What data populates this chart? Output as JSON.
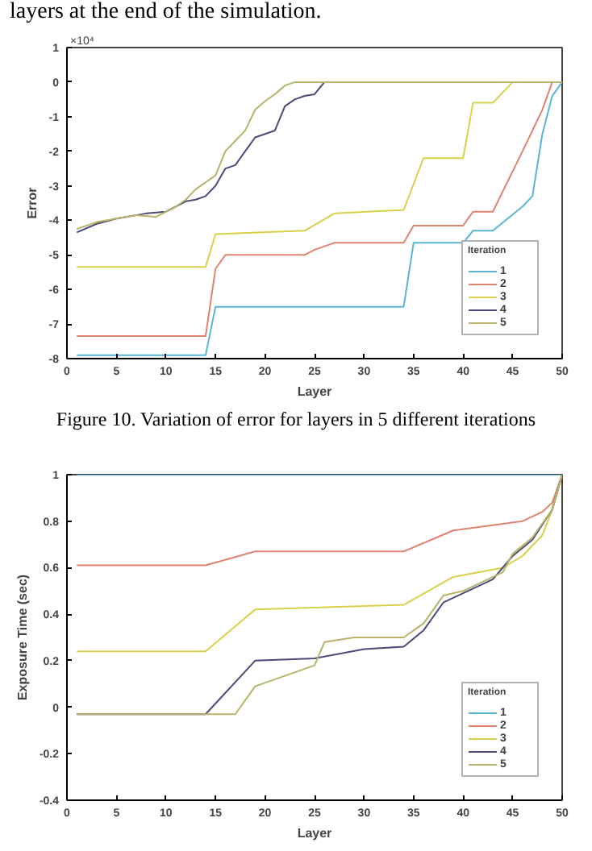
{
  "chart_data": [
    {
      "type": "line",
      "xlabel": "Layer",
      "ylabel": "Error",
      "legend_title": "Iteration",
      "legend": "bottom right",
      "grid": false,
      "xlim": [
        0,
        50
      ],
      "xticks": [
        0,
        5,
        10,
        15,
        20,
        25,
        30,
        35,
        40,
        45,
        50
      ],
      "ylim": [
        -8,
        1
      ],
      "yticks": [
        -8,
        -7,
        -6,
        -5,
        -4,
        -3,
        -2,
        -1,
        0,
        1
      ],
      "annotations": [
        "×10⁴",
        "layers at the end of the simulation.",
        "Figure 10. Variation of error for layers in 5 different iterations"
      ],
      "series": [
        {
          "name": "1",
          "color": "#5ab4d6",
          "x": [
            1,
            14,
            15,
            34,
            35,
            40,
            41,
            43,
            46,
            47,
            48,
            49,
            50
          ],
          "values": [
            -7.9,
            -7.9,
            -6.5,
            -6.5,
            -4.65,
            -4.65,
            -4.3,
            -4.3,
            -3.6,
            -3.3,
            -1.5,
            -0.4,
            0
          ]
        },
        {
          "name": "2",
          "color": "#e0836f",
          "x": [
            1,
            14,
            15,
            16,
            24,
            25,
            27,
            34,
            35,
            40,
            41,
            43,
            46,
            48,
            49,
            50
          ],
          "values": [
            -7.35,
            -7.35,
            -5.4,
            -5.0,
            -5.0,
            -4.85,
            -4.65,
            -4.65,
            -4.15,
            -4.15,
            -3.75,
            -3.75,
            -2.0,
            -0.8,
            0,
            0
          ]
        },
        {
          "name": "3",
          "color": "#d8d04a",
          "x": [
            1,
            14,
            15,
            24,
            27,
            34,
            36,
            40,
            41,
            43,
            45,
            50
          ],
          "values": [
            -5.35,
            -5.35,
            -4.4,
            -4.3,
            -3.8,
            -3.7,
            -2.2,
            -2.2,
            -0.6,
            -0.6,
            0,
            0
          ]
        },
        {
          "name": "4",
          "color": "#4b4a78",
          "x": [
            1,
            3,
            5,
            8,
            10,
            12,
            13,
            14,
            15,
            16,
            17,
            18,
            19,
            20,
            21,
            22,
            23,
            24,
            25,
            26,
            50
          ],
          "values": [
            -4.35,
            -4.1,
            -3.95,
            -3.8,
            -3.75,
            -3.45,
            -3.4,
            -3.3,
            -3.0,
            -2.5,
            -2.4,
            -2.0,
            -1.6,
            -1.5,
            -1.4,
            -0.7,
            -0.5,
            -0.4,
            -0.35,
            0,
            0
          ]
        },
        {
          "name": "5",
          "color": "#b9b26a",
          "x": [
            1,
            3,
            5,
            7,
            9,
            11,
            12,
            13,
            14,
            15,
            16,
            17,
            18,
            19,
            20,
            21,
            22,
            23,
            50
          ],
          "values": [
            -4.25,
            -4.05,
            -3.95,
            -3.85,
            -3.9,
            -3.6,
            -3.4,
            -3.1,
            -2.9,
            -2.7,
            -2.0,
            -1.7,
            -1.4,
            -0.8,
            -0.55,
            -0.35,
            -0.1,
            0,
            0
          ]
        }
      ]
    },
    {
      "type": "line",
      "xlabel": "Layer",
      "ylabel": "Exposure Time (sec)",
      "legend_title": "Iteration",
      "legend": "bottom right",
      "grid": false,
      "xlim": [
        0,
        50
      ],
      "xticks": [
        0,
        5,
        10,
        15,
        20,
        25,
        30,
        35,
        40,
        45,
        50
      ],
      "ylim": [
        -0.4,
        1
      ],
      "yticks": [
        -0.4,
        -0.2,
        0,
        0.2,
        0.4,
        0.6,
        0.8,
        1
      ],
      "series": [
        {
          "name": "1",
          "color": "#5ab4d6",
          "x": [
            1,
            50
          ],
          "values": [
            1,
            1
          ]
        },
        {
          "name": "2",
          "color": "#e0836f",
          "x": [
            1,
            14,
            19,
            34,
            39,
            46,
            48,
            49,
            50
          ],
          "values": [
            0.61,
            0.61,
            0.67,
            0.67,
            0.76,
            0.8,
            0.84,
            0.88,
            1
          ]
        },
        {
          "name": "3",
          "color": "#d8d04a",
          "x": [
            1,
            14,
            19,
            34,
            39,
            44,
            46,
            48,
            49,
            50
          ],
          "values": [
            0.24,
            0.24,
            0.42,
            0.44,
            0.56,
            0.6,
            0.65,
            0.74,
            0.85,
            1
          ]
        },
        {
          "name": "4",
          "color": "#4b4a78",
          "x": [
            1,
            14,
            19,
            25,
            30,
            34,
            36,
            38,
            39,
            43,
            45,
            47,
            49,
            50
          ],
          "values": [
            -0.03,
            -0.03,
            0.2,
            0.21,
            0.25,
            0.26,
            0.33,
            0.45,
            0.47,
            0.55,
            0.65,
            0.72,
            0.85,
            1
          ]
        },
        {
          "name": "5",
          "color": "#b9b26a",
          "x": [
            1,
            17,
            19,
            25,
            26,
            29,
            34,
            36,
            38,
            40,
            44,
            45,
            47,
            49,
            50
          ],
          "values": [
            -0.03,
            -0.03,
            0.09,
            0.18,
            0.28,
            0.3,
            0.3,
            0.36,
            0.48,
            0.5,
            0.58,
            0.66,
            0.73,
            0.85,
            1
          ]
        }
      ]
    }
  ]
}
